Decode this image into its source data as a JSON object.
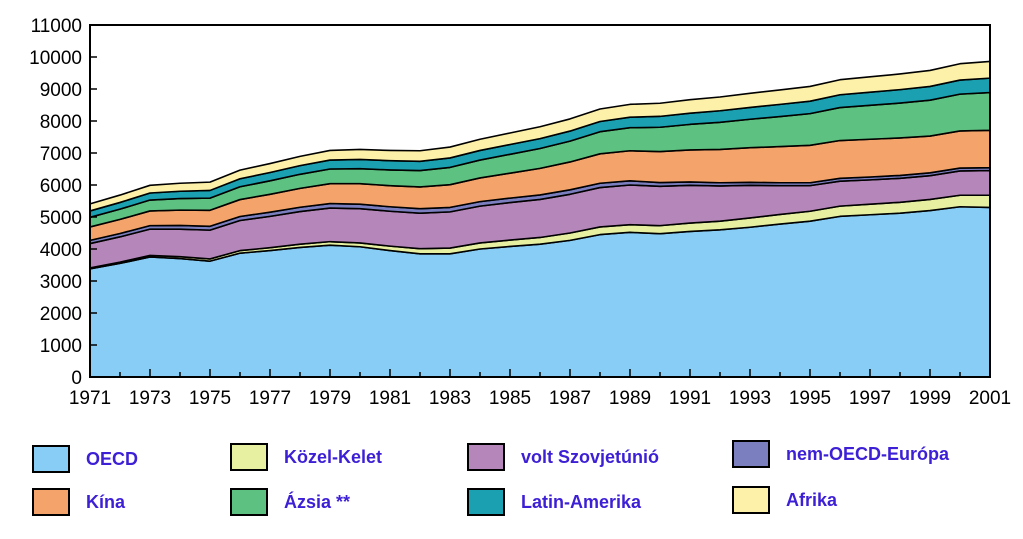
{
  "chart_data": {
    "type": "area",
    "stacked": true,
    "x": [
      1971,
      1972,
      1973,
      1974,
      1975,
      1976,
      1977,
      1978,
      1979,
      1980,
      1981,
      1982,
      1983,
      1984,
      1985,
      1986,
      1987,
      1988,
      1989,
      1990,
      1991,
      1992,
      1993,
      1994,
      1995,
      1996,
      1997,
      1998,
      1999,
      2000,
      2001
    ],
    "x_tick_labels": [
      "1971",
      "1973",
      "1975",
      "1977",
      "1979",
      "1981",
      "1983",
      "1985",
      "1987",
      "1989",
      "1991",
      "1993",
      "1995",
      "1997",
      "1999",
      "2001"
    ],
    "y_tick_labels": [
      "0",
      "1000",
      "2000",
      "3000",
      "4000",
      "5000",
      "6000",
      "7000",
      "8000",
      "9000",
      "10000",
      "11000"
    ],
    "xlim": [
      1971,
      2001
    ],
    "ylim": [
      0,
      11000
    ],
    "series": [
      {
        "name": "OECD",
        "color": "#87cdf5",
        "values": [
          3380,
          3550,
          3750,
          3700,
          3620,
          3870,
          3950,
          4050,
          4120,
          4070,
          3950,
          3850,
          3850,
          4000,
          4080,
          4150,
          4270,
          4450,
          4520,
          4480,
          4550,
          4600,
          4680,
          4780,
          4870,
          5020,
          5070,
          5120,
          5200,
          5320,
          5300
        ]
      },
      {
        "name": "Közel-Kelet",
        "color": "#e6f0a0",
        "values": [
          30,
          40,
          50,
          60,
          70,
          80,
          90,
          100,
          110,
          120,
          140,
          160,
          180,
          190,
          200,
          210,
          230,
          240,
          240,
          250,
          260,
          270,
          290,
          300,
          310,
          320,
          330,
          340,
          350,
          360,
          380
        ]
      },
      {
        "name": "volt Szovjetúnió",
        "color": "#b586b9",
        "values": [
          760,
          790,
          820,
          860,
          900,
          940,
          980,
          1020,
          1050,
          1070,
          1090,
          1110,
          1130,
          1150,
          1170,
          1190,
          1210,
          1230,
          1240,
          1230,
          1180,
          1100,
          1020,
          900,
          800,
          780,
          760,
          750,
          740,
          760,
          770
        ]
      },
      {
        "name": "nem-OECD-Európa",
        "color": "#7b7fc0",
        "values": [
          100,
          105,
          110,
          115,
          120,
          125,
          130,
          135,
          140,
          140,
          140,
          140,
          140,
          140,
          140,
          140,
          140,
          135,
          130,
          115,
          105,
          100,
          95,
          90,
          90,
          90,
          90,
          90,
          90,
          90,
          90
        ]
      },
      {
        "name": "Kína",
        "color": "#f4a46a",
        "values": [
          420,
          440,
          460,
          480,
          500,
          530,
          560,
          590,
          620,
          640,
          660,
          680,
          710,
          740,
          780,
          830,
          870,
          920,
          940,
          970,
          1000,
          1040,
          1080,
          1130,
          1170,
          1180,
          1180,
          1170,
          1150,
          1160,
          1170
        ]
      },
      {
        "name": "Ázsia **",
        "color": "#5dc181",
        "values": [
          300,
          320,
          340,
          360,
          380,
          400,
          420,
          440,
          460,
          470,
          490,
          510,
          540,
          560,
          590,
          620,
          650,
          690,
          720,
          760,
          800,
          850,
          890,
          940,
          990,
          1030,
          1060,
          1090,
          1120,
          1150,
          1180
        ]
      },
      {
        "name": "Latin-Amerika",
        "color": "#1aa0b0",
        "values": [
          200,
          210,
          220,
          230,
          240,
          250,
          260,
          270,
          280,
          290,
          290,
          290,
          295,
          300,
          305,
          310,
          315,
          320,
          330,
          340,
          350,
          360,
          370,
          380,
          390,
          400,
          410,
          420,
          430,
          440,
          450
        ]
      },
      {
        "name": "Afrika",
        "color": "#fdf0a8",
        "values": [
          220,
          230,
          240,
          250,
          260,
          270,
          280,
          290,
          300,
          310,
          320,
          330,
          340,
          350,
          360,
          370,
          380,
          390,
          400,
          410,
          420,
          430,
          440,
          450,
          460,
          470,
          480,
          490,
          500,
          510,
          520
        ]
      }
    ]
  }
}
